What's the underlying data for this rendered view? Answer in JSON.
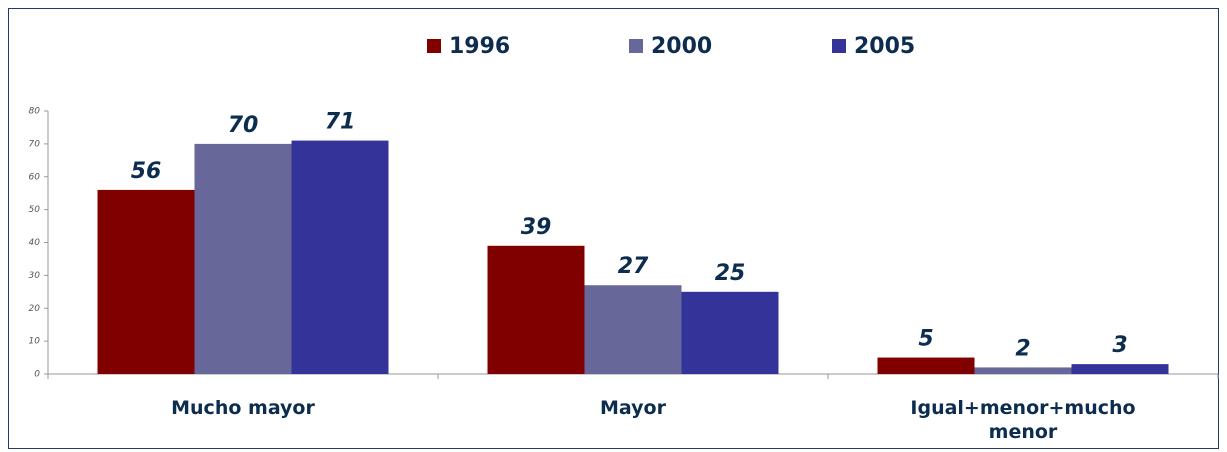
{
  "chart_data": {
    "type": "bar",
    "categories": [
      "Mucho mayor",
      "Mayor",
      "Igual+menor+mucho menor"
    ],
    "series": [
      {
        "name": "1996",
        "color": "#800000",
        "values": [
          56,
          39,
          5
        ]
      },
      {
        "name": "2000",
        "color": "#676799",
        "values": [
          70,
          27,
          2
        ]
      },
      {
        "name": "2005",
        "color": "#333399",
        "values": [
          71,
          25,
          3
        ]
      }
    ],
    "ylim": [
      0,
      80
    ],
    "yticks": [
      0,
      10,
      20,
      30,
      40,
      50,
      60,
      70,
      80
    ],
    "legend": "top",
    "grid": false
  }
}
